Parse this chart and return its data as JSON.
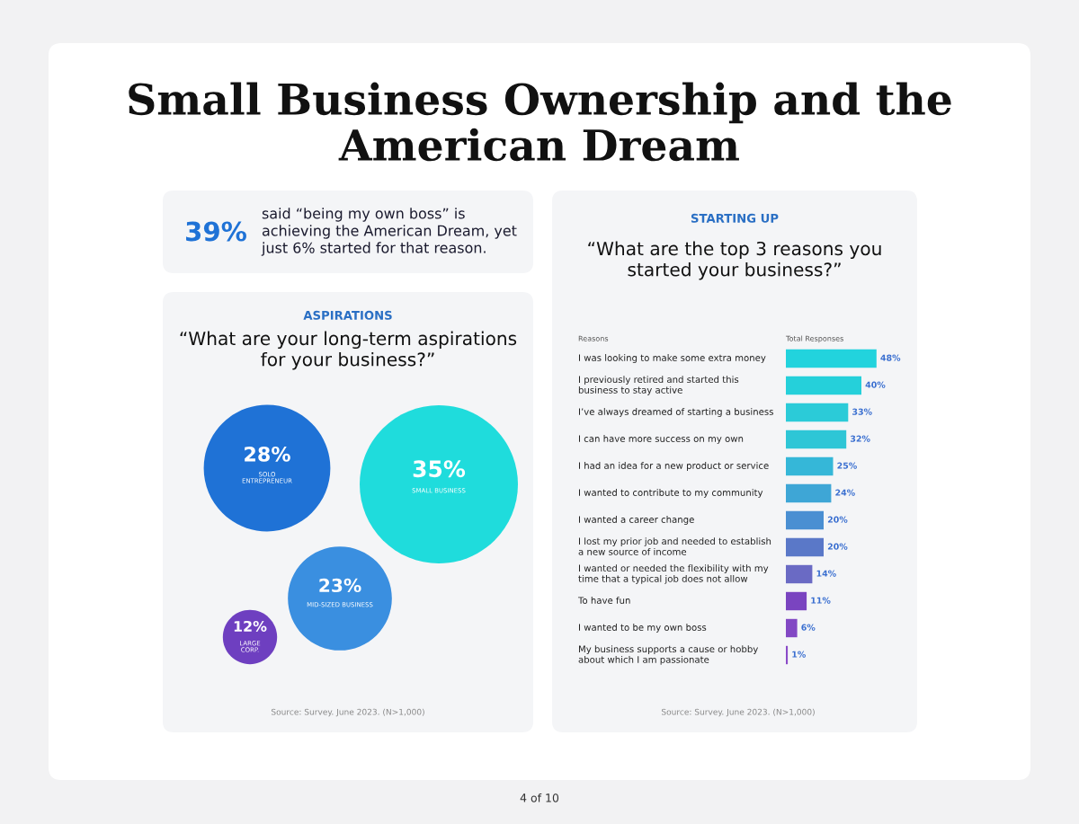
{
  "chart_data": [
    {
      "type": "other",
      "title": "Small Business Ownership and the\nAmerican Dream",
      "annotations": [
        "39%",
        "said “being my own boss” is\nachieving the American Dream, yet\njust 6% started for that reason.",
        "4 of 10"
      ]
    },
    {
      "type": "other",
      "subtitle": "ASPIRATIONS",
      "title": "“What are your long-term aspirations\nfor your business?”",
      "categories": [
        "SOLO\nENTREPRENEUR",
        "SMALL BUSINESS",
        "MID-SIZED BUSINESS",
        "LARGE\nCORP."
      ],
      "values": [
        28,
        35,
        23,
        12
      ],
      "value_labels": [
        "28%",
        "35%",
        "23%",
        "12%"
      ],
      "colors": [
        "#1f72d6",
        "#1fdcdc",
        "#3a8fe0",
        "#6e3fc0"
      ],
      "annotations": [
        "Source: Survey. June 2023. (N>1,000)"
      ]
    },
    {
      "type": "bar",
      "orientation": "horizontal",
      "subtitle": "STARTING UP",
      "title": "“What are the top 3 reasons you\nstarted your business?”",
      "xlabel": "Total Responses",
      "ylabel": "Reasons",
      "categories": [
        "I was looking to make some extra money",
        "I previously retired and started this\nbusiness to stay active",
        "I’ve always dreamed of starting a business",
        "I can have more success on my own",
        "I had an idea for a new product or service",
        "I wanted to contribute to my community",
        "I wanted a career change",
        "I lost my prior job and needed to establish\na new source of income",
        "I wanted or needed the flexibility with my\ntime that a typical job does not allow",
        "To have fun",
        "I wanted to be my own boss",
        "My business supports a cause or hobby\nabout which I am passionate"
      ],
      "values": [
        48,
        40,
        33,
        32,
        25,
        24,
        20,
        20,
        14,
        11,
        6,
        1
      ],
      "value_labels": [
        "48%",
        "40%",
        "33%",
        "32%",
        "25%",
        "24%",
        "20%",
        "20%",
        "14%",
        "11%",
        "6%",
        "1%"
      ],
      "colors": [
        "#22d3dd",
        "#25d0da",
        "#2bcbd8",
        "#2ec6d6",
        "#35b7d8",
        "#3ea6d6",
        "#4a8fd2",
        "#5a78c8",
        "#6a6ac4",
        "#7a44c0",
        "#8248c4",
        "#8a4ac8"
      ],
      "annotations": [
        "Source: Survey. June 2023. (N>1,000)"
      ]
    }
  ]
}
